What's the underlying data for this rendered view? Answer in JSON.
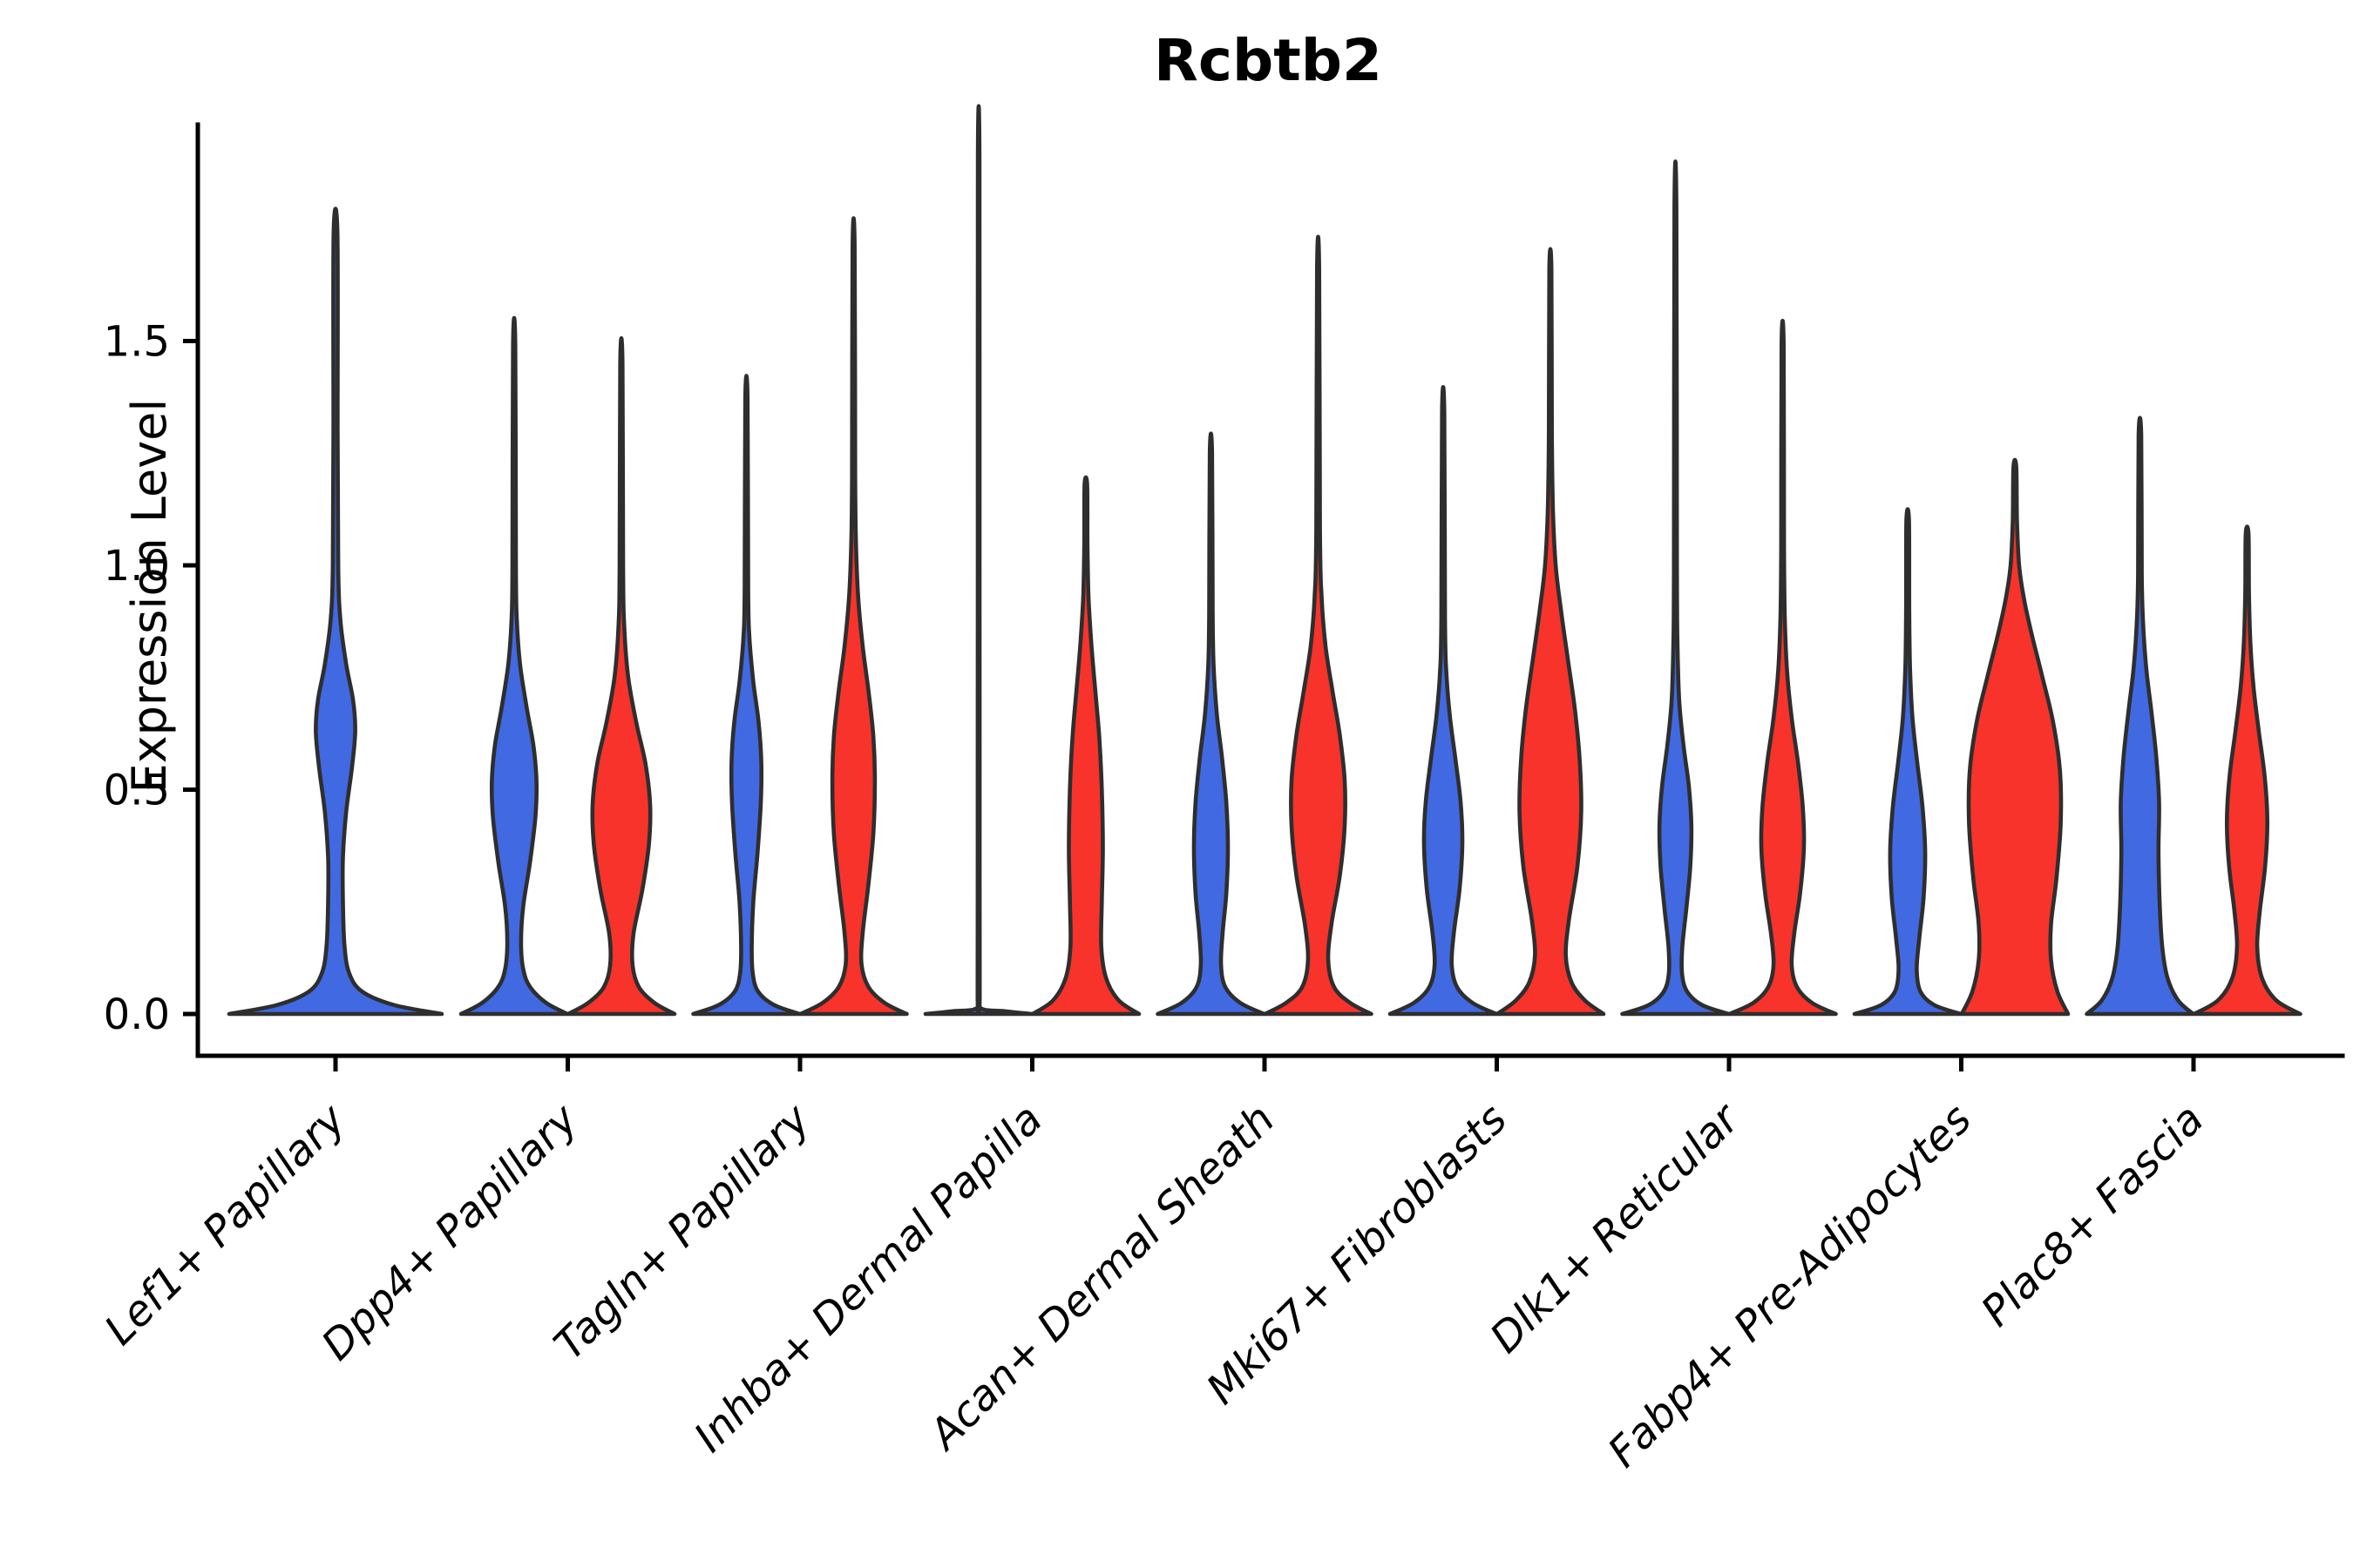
{
  "chart_data": {
    "type": "violin",
    "title": "Rcbtb2",
    "ylabel": "Expression Level",
    "xlabel": "",
    "ylim": [
      -0.11,
      1.98
    ],
    "grid": false,
    "legend": "none",
    "yticks": [
      {
        "value": 0.0,
        "label": "0.0"
      },
      {
        "value": 0.5,
        "label": "0.5"
      },
      {
        "value": 1.0,
        "label": "1.0"
      },
      {
        "value": 1.5,
        "label": "1.5"
      }
    ],
    "categories": [
      "Lef1+ Papillary",
      "Dpp4+ Papillary",
      "Tagln+ Papillary",
      "Inhba+ Dermal Papilla",
      "Acan+ Dermal Sheath",
      "Mki67+ Fibroblasts",
      "Dlk1+ Reticular",
      "Fabp4+ Pre-Adipocytes",
      "Plac8+ Fascia"
    ],
    "colors": {
      "blue": "#4169E1",
      "red": "#F8332B",
      "outline": "#2E2E2E",
      "axis": "#000000"
    },
    "violins": [
      {
        "category": "Lef1+ Papillary",
        "side": "single",
        "color": "blue",
        "max": 1.74,
        "profile": [
          [
            0,
            1.0
          ],
          [
            0.02,
            0.55
          ],
          [
            0.05,
            0.25
          ],
          [
            0.09,
            0.13
          ],
          [
            0.15,
            0.085
          ],
          [
            0.25,
            0.07
          ],
          [
            0.35,
            0.07
          ],
          [
            0.45,
            0.1
          ],
          [
            0.55,
            0.155
          ],
          [
            0.63,
            0.185
          ],
          [
            0.7,
            0.165
          ],
          [
            0.78,
            0.1
          ],
          [
            0.88,
            0.045
          ],
          [
            1.0,
            0.025
          ],
          [
            1.3,
            0.02
          ],
          [
            1.74,
            0.018
          ]
        ]
      },
      {
        "category": "Dpp4+ Papillary",
        "side": "left",
        "color": "blue",
        "max": 1.49,
        "profile": [
          [
            0,
            1.0
          ],
          [
            0.025,
            0.6
          ],
          [
            0.06,
            0.3
          ],
          [
            0.1,
            0.17
          ],
          [
            0.16,
            0.13
          ],
          [
            0.24,
            0.17
          ],
          [
            0.34,
            0.3
          ],
          [
            0.44,
            0.4
          ],
          [
            0.52,
            0.42
          ],
          [
            0.6,
            0.36
          ],
          [
            0.68,
            0.24
          ],
          [
            0.78,
            0.11
          ],
          [
            0.88,
            0.05
          ],
          [
            1.0,
            0.032
          ],
          [
            1.49,
            0.022
          ]
        ]
      },
      {
        "category": "Dpp4+ Papillary",
        "side": "right",
        "color": "red",
        "max": 1.45,
        "profile": [
          [
            0,
            1.0
          ],
          [
            0.025,
            0.62
          ],
          [
            0.06,
            0.33
          ],
          [
            0.11,
            0.21
          ],
          [
            0.18,
            0.23
          ],
          [
            0.28,
            0.4
          ],
          [
            0.38,
            0.52
          ],
          [
            0.47,
            0.54
          ],
          [
            0.56,
            0.45
          ],
          [
            0.65,
            0.28
          ],
          [
            0.75,
            0.13
          ],
          [
            0.86,
            0.055
          ],
          [
            1.0,
            0.032
          ],
          [
            1.45,
            0.022
          ]
        ]
      },
      {
        "category": "Tagln+ Papillary",
        "side": "left",
        "color": "blue",
        "max": 1.37,
        "profile": [
          [
            0,
            1.0
          ],
          [
            0.02,
            0.52
          ],
          [
            0.05,
            0.22
          ],
          [
            0.09,
            0.12
          ],
          [
            0.15,
            0.1
          ],
          [
            0.25,
            0.13
          ],
          [
            0.36,
            0.21
          ],
          [
            0.47,
            0.27
          ],
          [
            0.56,
            0.28
          ],
          [
            0.65,
            0.23
          ],
          [
            0.74,
            0.13
          ],
          [
            0.84,
            0.055
          ],
          [
            0.95,
            0.032
          ],
          [
            1.37,
            0.022
          ]
        ]
      },
      {
        "category": "Tagln+ Papillary",
        "side": "right",
        "color": "red",
        "max": 1.71,
        "profile": [
          [
            0,
            1.0
          ],
          [
            0.025,
            0.58
          ],
          [
            0.06,
            0.28
          ],
          [
            0.11,
            0.15
          ],
          [
            0.18,
            0.17
          ],
          [
            0.28,
            0.27
          ],
          [
            0.4,
            0.37
          ],
          [
            0.52,
            0.4
          ],
          [
            0.62,
            0.37
          ],
          [
            0.72,
            0.28
          ],
          [
            0.82,
            0.17
          ],
          [
            0.93,
            0.085
          ],
          [
            1.05,
            0.045
          ],
          [
            1.2,
            0.03
          ],
          [
            1.71,
            0.02
          ]
        ]
      },
      {
        "category": "Inhba+ Dermal Papilla",
        "side": "left",
        "color": "blue",
        "max": 1.91,
        "profile": [
          [
            0,
            1.0
          ],
          [
            0.006,
            0.5
          ],
          [
            0.013,
            0.04
          ],
          [
            0.05,
            0.02
          ],
          [
            0.5,
            0.018
          ],
          [
            1.0,
            0.016
          ],
          [
            1.91,
            0.015
          ]
        ]
      },
      {
        "category": "Inhba+ Dermal Papilla",
        "side": "right",
        "color": "red",
        "max": 1.18,
        "profile": [
          [
            0,
            1.0
          ],
          [
            0.03,
            0.62
          ],
          [
            0.08,
            0.38
          ],
          [
            0.15,
            0.29
          ],
          [
            0.25,
            0.3
          ],
          [
            0.37,
            0.32
          ],
          [
            0.5,
            0.3
          ],
          [
            0.62,
            0.25
          ],
          [
            0.73,
            0.17
          ],
          [
            0.83,
            0.1
          ],
          [
            0.93,
            0.05
          ],
          [
            1.05,
            0.03
          ],
          [
            1.18,
            0.024
          ]
        ]
      },
      {
        "category": "Acan+ Dermal Sheath",
        "side": "left",
        "color": "blue",
        "max": 1.25,
        "profile": [
          [
            0,
            1.0
          ],
          [
            0.025,
            0.55
          ],
          [
            0.06,
            0.27
          ],
          [
            0.11,
            0.19
          ],
          [
            0.18,
            0.22
          ],
          [
            0.27,
            0.29
          ],
          [
            0.37,
            0.32
          ],
          [
            0.47,
            0.29
          ],
          [
            0.57,
            0.21
          ],
          [
            0.67,
            0.11
          ],
          [
            0.78,
            0.05
          ],
          [
            0.9,
            0.032
          ],
          [
            1.25,
            0.022
          ]
        ]
      },
      {
        "category": "Acan+ Dermal Sheath",
        "side": "right",
        "color": "red",
        "max": 1.66,
        "profile": [
          [
            0,
            1.0
          ],
          [
            0.025,
            0.6
          ],
          [
            0.06,
            0.3
          ],
          [
            0.12,
            0.19
          ],
          [
            0.2,
            0.25
          ],
          [
            0.31,
            0.41
          ],
          [
            0.42,
            0.5
          ],
          [
            0.52,
            0.5
          ],
          [
            0.62,
            0.41
          ],
          [
            0.72,
            0.27
          ],
          [
            0.82,
            0.14
          ],
          [
            0.93,
            0.065
          ],
          [
            1.08,
            0.035
          ],
          [
            1.66,
            0.02
          ]
        ]
      },
      {
        "category": "Mki67+ Fibroblasts",
        "side": "left",
        "color": "blue",
        "max": 1.34,
        "profile": [
          [
            0,
            1.0
          ],
          [
            0.025,
            0.55
          ],
          [
            0.06,
            0.26
          ],
          [
            0.11,
            0.16
          ],
          [
            0.18,
            0.2
          ],
          [
            0.28,
            0.31
          ],
          [
            0.38,
            0.36
          ],
          [
            0.47,
            0.33
          ],
          [
            0.56,
            0.24
          ],
          [
            0.66,
            0.13
          ],
          [
            0.76,
            0.06
          ],
          [
            0.88,
            0.035
          ],
          [
            1.34,
            0.022
          ]
        ]
      },
      {
        "category": "Mki67+ Fibroblasts",
        "side": "right",
        "color": "red",
        "max": 1.66,
        "profile": [
          [
            0,
            1.0
          ],
          [
            0.03,
            0.65
          ],
          [
            0.07,
            0.4
          ],
          [
            0.13,
            0.29
          ],
          [
            0.21,
            0.35
          ],
          [
            0.33,
            0.51
          ],
          [
            0.45,
            0.58
          ],
          [
            0.57,
            0.55
          ],
          [
            0.68,
            0.46
          ],
          [
            0.79,
            0.33
          ],
          [
            0.9,
            0.2
          ],
          [
            1.0,
            0.1
          ],
          [
            1.12,
            0.05
          ],
          [
            1.3,
            0.028
          ],
          [
            1.66,
            0.02
          ]
        ]
      },
      {
        "category": "Dlk1+ Reticular",
        "side": "left",
        "color": "blue",
        "max": 1.8,
        "profile": [
          [
            0,
            1.0
          ],
          [
            0.02,
            0.5
          ],
          [
            0.05,
            0.22
          ],
          [
            0.09,
            0.125
          ],
          [
            0.15,
            0.13
          ],
          [
            0.24,
            0.21
          ],
          [
            0.33,
            0.28
          ],
          [
            0.42,
            0.3
          ],
          [
            0.51,
            0.25
          ],
          [
            0.6,
            0.15
          ],
          [
            0.7,
            0.07
          ],
          [
            0.82,
            0.04
          ],
          [
            1.0,
            0.028
          ],
          [
            1.8,
            0.018
          ]
        ]
      },
      {
        "category": "Dlk1+ Reticular",
        "side": "right",
        "color": "red",
        "max": 1.49,
        "profile": [
          [
            0,
            1.0
          ],
          [
            0.025,
            0.55
          ],
          [
            0.06,
            0.27
          ],
          [
            0.11,
            0.17
          ],
          [
            0.18,
            0.22
          ],
          [
            0.27,
            0.33
          ],
          [
            0.37,
            0.4
          ],
          [
            0.46,
            0.38
          ],
          [
            0.56,
            0.29
          ],
          [
            0.66,
            0.17
          ],
          [
            0.77,
            0.08
          ],
          [
            0.89,
            0.04
          ],
          [
            1.05,
            0.026
          ],
          [
            1.49,
            0.02
          ]
        ]
      },
      {
        "category": "Fabp4+ Pre-Adipocytes",
        "side": "left",
        "color": "blue",
        "max": 1.1,
        "profile": [
          [
            0,
            1.0
          ],
          [
            0.02,
            0.5
          ],
          [
            0.05,
            0.24
          ],
          [
            0.1,
            0.17
          ],
          [
            0.17,
            0.22
          ],
          [
            0.26,
            0.3
          ],
          [
            0.36,
            0.33
          ],
          [
            0.46,
            0.28
          ],
          [
            0.56,
            0.18
          ],
          [
            0.66,
            0.09
          ],
          [
            0.77,
            0.045
          ],
          [
            0.9,
            0.03
          ],
          [
            1.1,
            0.024
          ]
        ]
      },
      {
        "category": "Fabp4+ Pre-Adipocytes",
        "side": "right",
        "color": "red",
        "max": 1.22,
        "profile": [
          [
            0,
            1.0
          ],
          [
            0.05,
            0.8
          ],
          [
            0.12,
            0.68
          ],
          [
            0.2,
            0.68
          ],
          [
            0.3,
            0.78
          ],
          [
            0.42,
            0.86
          ],
          [
            0.54,
            0.85
          ],
          [
            0.65,
            0.72
          ],
          [
            0.75,
            0.52
          ],
          [
            0.84,
            0.33
          ],
          [
            0.92,
            0.18
          ],
          [
            1.0,
            0.08
          ],
          [
            1.1,
            0.04
          ],
          [
            1.22,
            0.026
          ]
        ]
      },
      {
        "category": "Plac8+ Fascia",
        "side": "left",
        "color": "blue",
        "max": 1.29,
        "profile": [
          [
            0,
            1.0
          ],
          [
            0.03,
            0.72
          ],
          [
            0.08,
            0.52
          ],
          [
            0.15,
            0.42
          ],
          [
            0.25,
            0.37
          ],
          [
            0.36,
            0.35
          ],
          [
            0.47,
            0.36
          ],
          [
            0.57,
            0.31
          ],
          [
            0.67,
            0.22
          ],
          [
            0.77,
            0.12
          ],
          [
            0.87,
            0.06
          ],
          [
            0.98,
            0.035
          ],
          [
            1.29,
            0.024
          ]
        ]
      },
      {
        "category": "Plac8+ Fascia",
        "side": "right",
        "color": "red",
        "max": 1.07,
        "profile": [
          [
            0,
            1.0
          ],
          [
            0.03,
            0.55
          ],
          [
            0.08,
            0.28
          ],
          [
            0.15,
            0.19
          ],
          [
            0.23,
            0.24
          ],
          [
            0.33,
            0.34
          ],
          [
            0.43,
            0.38
          ],
          [
            0.53,
            0.33
          ],
          [
            0.63,
            0.22
          ],
          [
            0.73,
            0.12
          ],
          [
            0.83,
            0.06
          ],
          [
            0.94,
            0.035
          ],
          [
            1.07,
            0.026
          ]
        ]
      }
    ]
  }
}
